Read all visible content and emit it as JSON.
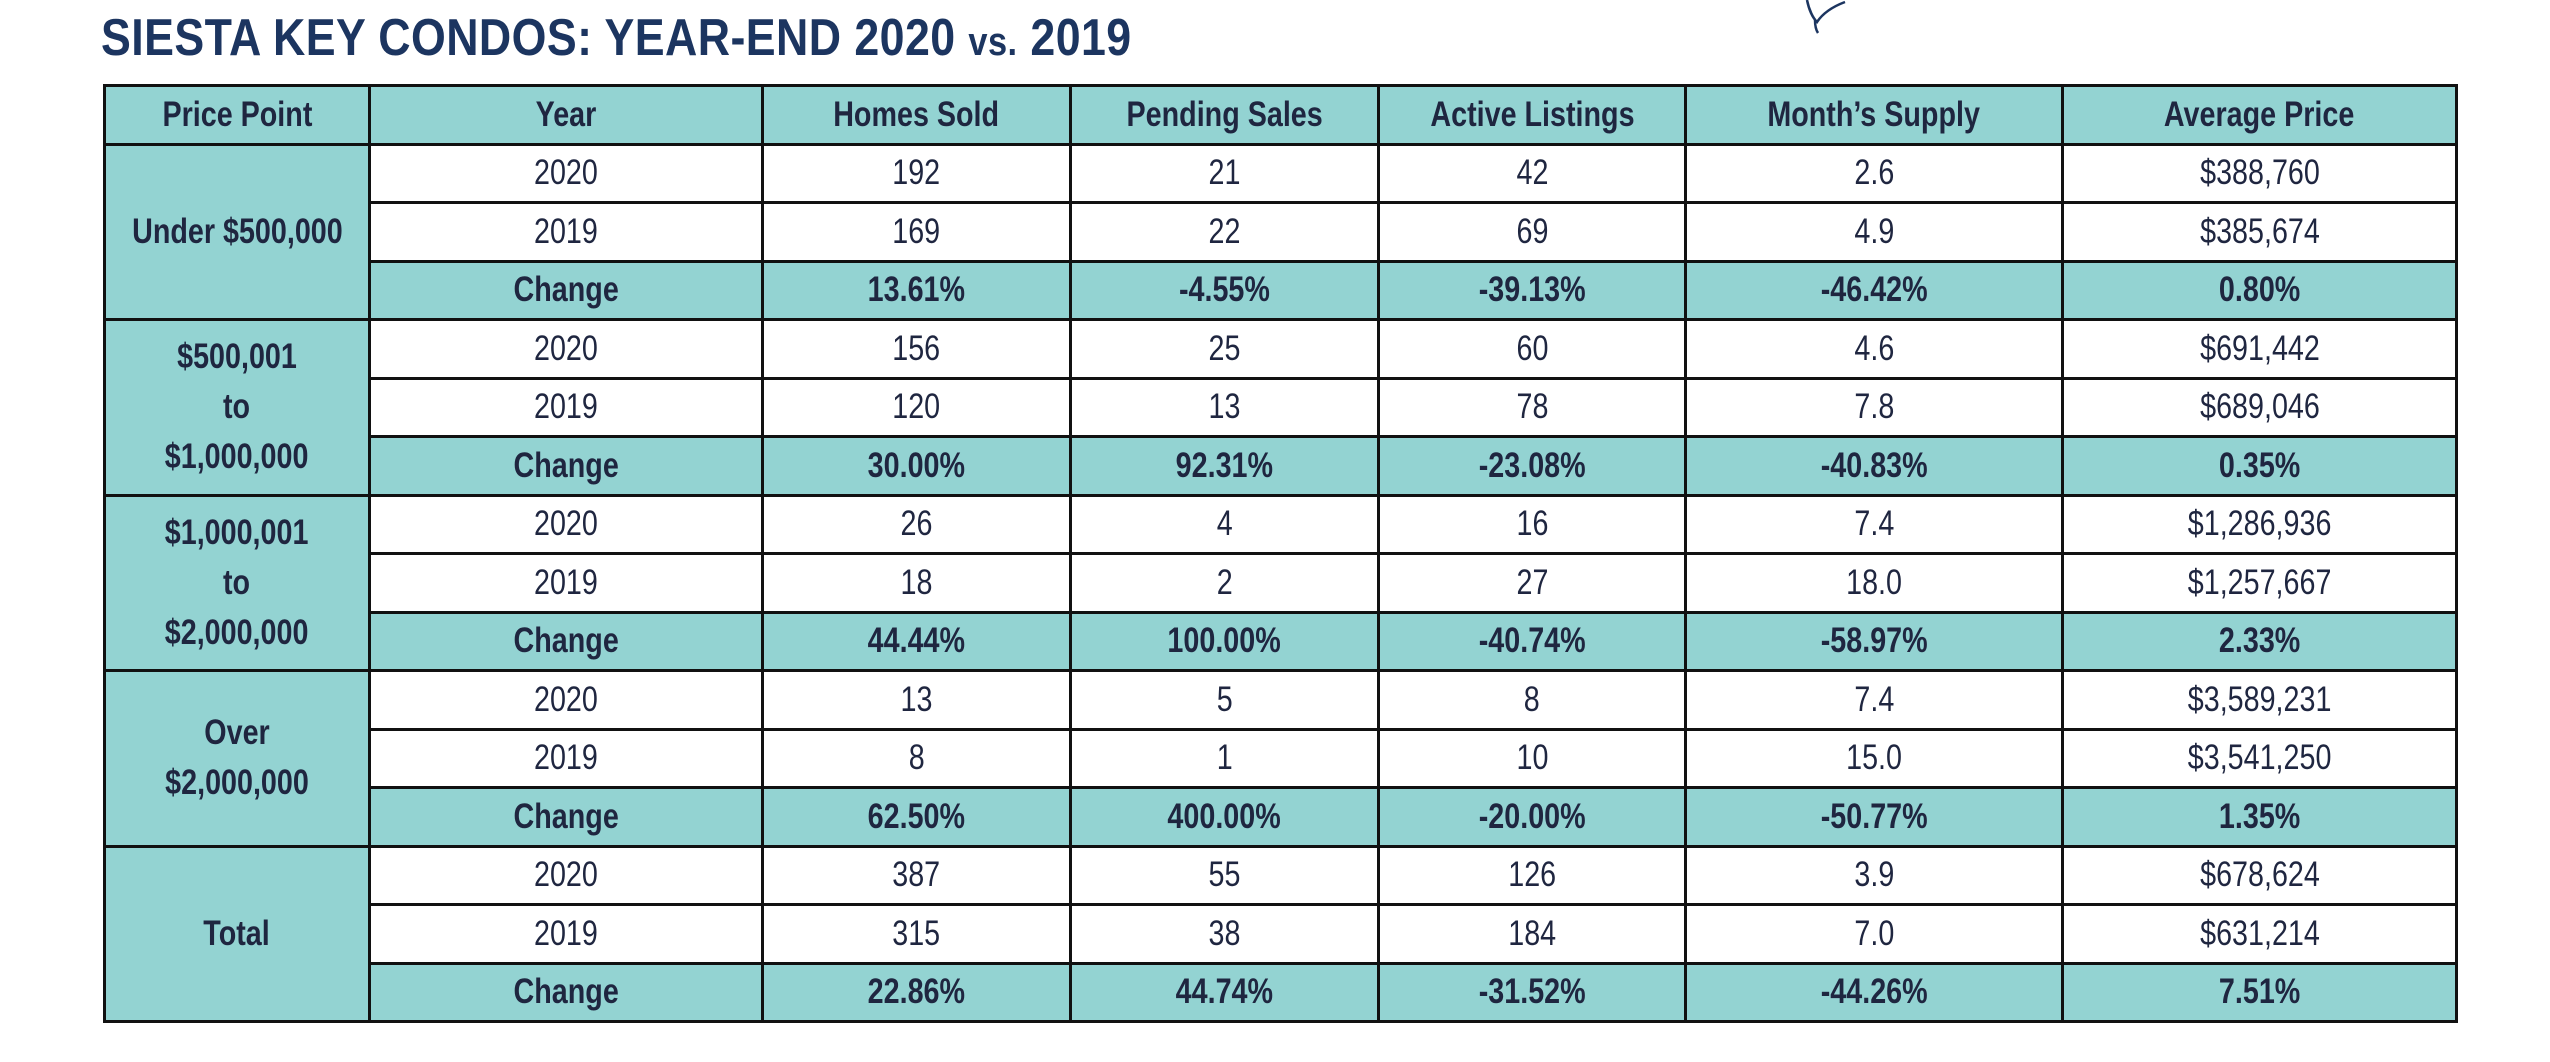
{
  "title": {
    "main": "SIESTA KEY CONDOS: YEAR-END 2020",
    "vs": "vs.",
    "compare_year": "2019"
  },
  "logo": {
    "icon": "bird-sketch-icon"
  },
  "colors": {
    "header_fill": "#93d3d2",
    "title_color": "#1c3560",
    "border_color": "#111111"
  },
  "columns": [
    "Price Point",
    "Year",
    "Homes Sold",
    "Pending Sales",
    "Active Listings",
    "Month’s Supply",
    "Average Price"
  ],
  "groups": [
    {
      "price_point_lines": [
        "Under $500,000"
      ],
      "rows": [
        [
          "2020",
          "192",
          "21",
          "42",
          "2.6",
          "$388,760"
        ],
        [
          "2019",
          "169",
          "22",
          "69",
          "4.9",
          "$385,674"
        ],
        [
          "Change",
          "13.61%",
          "-4.55%",
          "-39.13%",
          "-46.42%",
          "0.80%"
        ]
      ]
    },
    {
      "price_point_lines": [
        "$500,001",
        "to",
        "$1,000,000"
      ],
      "rows": [
        [
          "2020",
          "156",
          "25",
          "60",
          "4.6",
          "$691,442"
        ],
        [
          "2019",
          "120",
          "13",
          "78",
          "7.8",
          "$689,046"
        ],
        [
          "Change",
          "30.00%",
          "92.31%",
          "-23.08%",
          "-40.83%",
          "0.35%"
        ]
      ]
    },
    {
      "price_point_lines": [
        "$1,000,001",
        "to",
        "$2,000,000"
      ],
      "rows": [
        [
          "2020",
          "26",
          "4",
          "16",
          "7.4",
          "$1,286,936"
        ],
        [
          "2019",
          "18",
          "2",
          "27",
          "18.0",
          "$1,257,667"
        ],
        [
          "Change",
          "44.44%",
          "100.00%",
          "-40.74%",
          "-58.97%",
          "2.33%"
        ]
      ]
    },
    {
      "price_point_lines": [
        "Over $2,000,000"
      ],
      "rows": [
        [
          "2020",
          "13",
          "5",
          "8",
          "7.4",
          "$3,589,231"
        ],
        [
          "2019",
          "8",
          "1",
          "10",
          "15.0",
          "$3,541,250"
        ],
        [
          "Change",
          "62.50%",
          "400.00%",
          "-20.00%",
          "-50.77%",
          "1.35%"
        ]
      ]
    },
    {
      "price_point_lines": [
        "Total"
      ],
      "rows": [
        [
          "2020",
          "387",
          "55",
          "126",
          "3.9",
          "$678,624"
        ],
        [
          "2019",
          "315",
          "38",
          "184",
          "7.0",
          "$631,214"
        ],
        [
          "Change",
          "22.86%",
          "44.74%",
          "-31.52%",
          "-44.26%",
          "7.51%"
        ]
      ]
    }
  ]
}
